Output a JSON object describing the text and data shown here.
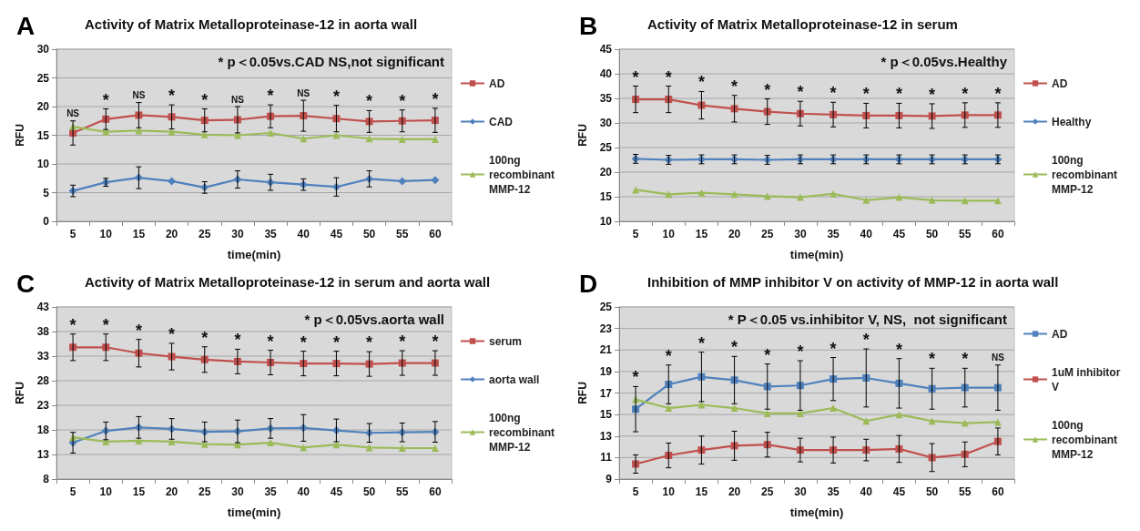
{
  "chart_data": [
    {
      "type": "line",
      "title": "Activity of Matrix Metalloproteinase-12 in aorta wall",
      "xlabel": "time(min)",
      "ylabel": "RFU",
      "categories": [
        "5",
        "10",
        "15",
        "20",
        "25",
        "30",
        "35",
        "40",
        "45",
        "50",
        "55",
        "60"
      ],
      "ylim": [
        0,
        30
      ],
      "yticks": [
        0,
        5,
        10,
        15,
        20,
        25,
        30
      ],
      "grid": "y",
      "legend": "right",
      "line_style": "solid",
      "series": [
        {
          "name": "AD",
          "color": "#c0504d",
          "marker": "square",
          "values": [
            15.4,
            17.8,
            18.5,
            18.2,
            17.6,
            17.7,
            18.3,
            18.4,
            17.9,
            17.4,
            17.5,
            17.6
          ],
          "errors": [
            2.1,
            1.8,
            2.2,
            2.1,
            2.0,
            2.3,
            2.0,
            2.7,
            2.3,
            1.9,
            1.9,
            2.1
          ]
        },
        {
          "name": "CAD",
          "color": "#4f81bd",
          "marker": "diamond",
          "values": [
            5.3,
            6.8,
            7.6,
            7.0,
            5.9,
            7.3,
            6.8,
            6.4,
            6.0,
            7.4,
            7.0,
            7.2
          ],
          "errors": [
            1.0,
            0.7,
            1.9,
            null,
            1.0,
            1.5,
            1.4,
            1.0,
            1.6,
            1.4,
            null,
            null
          ]
        },
        {
          "name": "100ng recombinant MMP-12",
          "color": "#9bbb59",
          "marker": "triangle",
          "values": [
            16.5,
            15.6,
            15.8,
            15.6,
            15.1,
            15.0,
            15.4,
            14.4,
            15.0,
            14.4,
            14.3,
            14.3
          ]
        }
      ],
      "annotations": [
        "A",
        "* p＜0.05vs.CAD NS,not significant",
        "NS",
        "*",
        "NS",
        "*",
        "*",
        "NS",
        "*",
        "NS",
        "*",
        "*",
        "*",
        "*"
      ]
    },
    {
      "type": "line",
      "title": "Activity of Matrix Metalloproteinase-12 in serum",
      "xlabel": "time(min)",
      "ylabel": "RFU",
      "categories": [
        "5",
        "10",
        "15",
        "20",
        "25",
        "30",
        "35",
        "40",
        "45",
        "50",
        "55",
        "60"
      ],
      "ylim": [
        10,
        45
      ],
      "yticks": [
        10,
        15,
        20,
        25,
        30,
        35,
        40,
        45
      ],
      "grid": "y",
      "legend": "right",
      "line_style": "solid",
      "series": [
        {
          "name": "AD",
          "color": "#c0504d",
          "marker": "square",
          "values": [
            34.8,
            34.8,
            33.6,
            32.9,
            32.3,
            31.9,
            31.7,
            31.5,
            31.5,
            31.4,
            31.6,
            31.6
          ],
          "errors": [
            2.7,
            2.7,
            2.8,
            2.7,
            2.6,
            2.5,
            2.5,
            2.5,
            2.5,
            2.5,
            2.5,
            2.5
          ]
        },
        {
          "name": "Healthy",
          "color": "#4f81bd",
          "marker": "diamond",
          "values": [
            22.7,
            22.5,
            22.6,
            22.6,
            22.5,
            22.6,
            22.6,
            22.6,
            22.6,
            22.6,
            22.6,
            22.6
          ],
          "errors": [
            0.9,
            0.9,
            0.9,
            0.9,
            0.9,
            0.9,
            0.9,
            0.9,
            0.9,
            0.9,
            0.9,
            0.9
          ]
        },
        {
          "name": "100ng recombinant MMP-12",
          "color": "#9bbb59",
          "marker": "triangle",
          "values": [
            16.4,
            15.5,
            15.8,
            15.5,
            15.1,
            14.9,
            15.6,
            14.3,
            14.9,
            14.3,
            14.2,
            14.2
          ]
        }
      ],
      "annotations": [
        "B",
        "* p＜0.05vs.Healthy",
        "*",
        "*",
        "*",
        "*",
        "*",
        "*",
        "*",
        "*",
        "*",
        "*",
        "*",
        "*"
      ]
    },
    {
      "type": "line",
      "title": "Activity of Matrix Metalloproteinase-12 in serum and aorta wall",
      "xlabel": "time(min)",
      "ylabel": "RFU",
      "categories": [
        "5",
        "10",
        "15",
        "20",
        "25",
        "30",
        "35",
        "40",
        "45",
        "50",
        "55",
        "60"
      ],
      "ylim": [
        8,
        43
      ],
      "yticks": [
        8,
        13,
        18,
        23,
        28,
        33,
        38,
        43
      ],
      "grid": "y",
      "legend": "right",
      "line_style": "solid",
      "series": [
        {
          "name": "serum",
          "color": "#c0504d",
          "marker": "square",
          "values": [
            34.8,
            34.8,
            33.6,
            32.9,
            32.3,
            31.9,
            31.7,
            31.5,
            31.5,
            31.4,
            31.6,
            31.6
          ],
          "errors": [
            2.7,
            2.7,
            2.8,
            2.7,
            2.6,
            2.5,
            2.5,
            2.5,
            2.5,
            2.5,
            2.5,
            2.5
          ]
        },
        {
          "name": "aorta wall",
          "color": "#4f81bd",
          "marker": "diamond",
          "values": [
            15.4,
            17.8,
            18.5,
            18.2,
            17.6,
            17.7,
            18.3,
            18.4,
            17.9,
            17.4,
            17.5,
            17.6
          ],
          "errors": [
            2.1,
            1.8,
            2.2,
            2.1,
            2.0,
            2.3,
            2.0,
            2.7,
            2.3,
            1.9,
            1.9,
            2.1
          ]
        },
        {
          "name": "100ng recombinant MMP-12",
          "color": "#9bbb59",
          "marker": "triangle",
          "values": [
            16.5,
            15.6,
            15.8,
            15.6,
            15.1,
            15.0,
            15.4,
            14.4,
            15.0,
            14.4,
            14.3,
            14.3
          ]
        }
      ],
      "annotations": [
        "C",
        "* p＜0.05vs.aorta wall",
        "*",
        "*",
        "*",
        "*",
        "*",
        "*",
        "*",
        "*",
        "*",
        "*",
        "*",
        "*"
      ]
    },
    {
      "type": "line",
      "title": "Inhibition of MMP inhibitor V on activity of MMP-12 in aorta wall",
      "xlabel": "time(min)",
      "ylabel": "RFU",
      "categories": [
        "5",
        "10",
        "15",
        "20",
        "25",
        "30",
        "35",
        "40",
        "45",
        "50",
        "55",
        "60"
      ],
      "ylim": [
        9,
        25
      ],
      "yticks": [
        9,
        11,
        13,
        15,
        17,
        19,
        21,
        23,
        25
      ],
      "grid": "y",
      "legend": "right",
      "line_style": "solid",
      "series": [
        {
          "name": "AD",
          "color": "#4f81bd",
          "marker": "square",
          "values": [
            15.5,
            17.8,
            18.5,
            18.2,
            17.6,
            17.7,
            18.3,
            18.4,
            17.9,
            17.4,
            17.5,
            17.5
          ],
          "errors": [
            2.1,
            1.8,
            2.3,
            2.2,
            2.1,
            2.3,
            2.0,
            2.7,
            2.3,
            1.9,
            1.8,
            2.1
          ]
        },
        {
          "name": "1uM inhibitor V",
          "color": "#c0504d",
          "marker": "square",
          "values": [
            10.4,
            11.2,
            11.7,
            12.1,
            12.2,
            11.7,
            11.7,
            11.7,
            11.8,
            11.0,
            11.3,
            12.5
          ],
          "errors": [
            0.85,
            1.15,
            1.3,
            1.35,
            1.15,
            1.1,
            1.2,
            1.0,
            1.25,
            1.3,
            1.15,
            1.25
          ]
        },
        {
          "name": "100ng recombinant MMP-12",
          "color": "#9bbb59",
          "marker": "triangle",
          "values": [
            16.4,
            15.6,
            15.9,
            15.6,
            15.1,
            15.1,
            15.6,
            14.4,
            15.0,
            14.4,
            14.2,
            14.3
          ]
        }
      ],
      "annotations": [
        "D",
        "* P＜0.05 vs.inhibitor V, NS,  not significant",
        "*",
        "*",
        "*",
        "*",
        "*",
        "*",
        "*",
        "*",
        "*",
        "*",
        "*",
        "NS"
      ]
    }
  ]
}
